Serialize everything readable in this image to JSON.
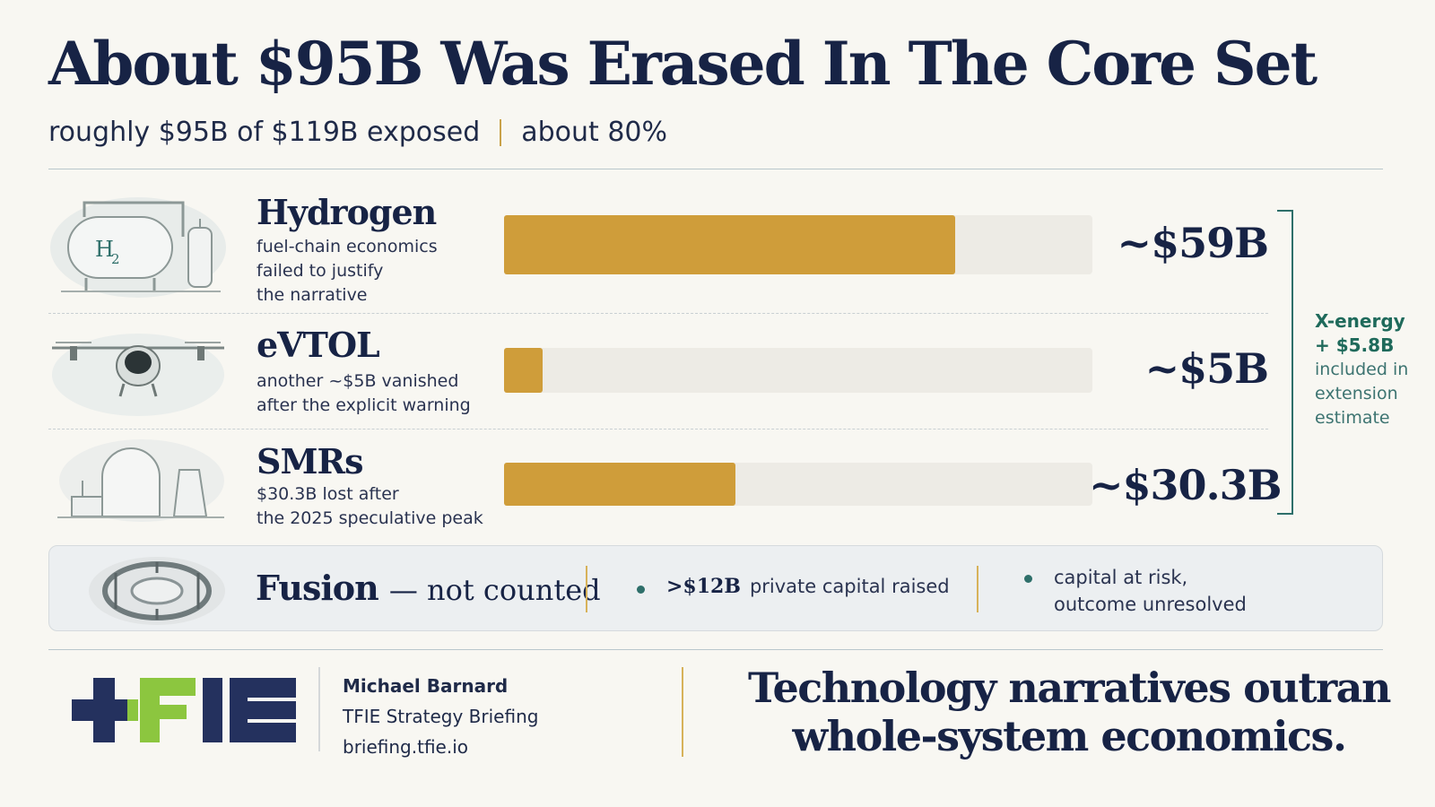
{
  "header": {
    "title": "About $95B Was Erased In The Core Set",
    "subtitle_left": "roughly $95B of $119B exposed",
    "subtitle_right": "about 80%"
  },
  "chart_data": {
    "type": "bar",
    "orientation": "horizontal",
    "categories": [
      "Hydrogen",
      "eVTOL",
      "SMRs"
    ],
    "values": [
      59,
      5,
      30.3
    ],
    "value_labels": [
      "~$59B",
      "~$5B",
      "~$30.3B"
    ],
    "unit": "$B",
    "xlim": [
      0,
      77
    ],
    "descriptions": [
      "fuel-chain economics failed to justify the narrative",
      "another ~$5B vanished after the explicit warning",
      "$30.3B lost after the 2025 speculative peak"
    ],
    "bar_color": "#cf9d3a",
    "track_color": "#edebe5"
  },
  "rows": [
    {
      "name": "Hydrogen",
      "desc": [
        "fuel-chain economics",
        "failed to justify",
        "the narrative"
      ],
      "value_label": "~$59B",
      "icon": "hydrogen-tank-icon"
    },
    {
      "name": "eVTOL",
      "desc": [
        "another ~$5B vanished",
        "after the explicit warning"
      ],
      "value_label": "~$5B",
      "icon": "evtol-aircraft-icon"
    },
    {
      "name": "SMRs",
      "desc": [
        "$30.3B lost after",
        "the 2025 speculative peak"
      ],
      "value_label": "~$30.3B",
      "icon": "nuclear-plant-icon"
    }
  ],
  "side_note": {
    "line1": "X-energy",
    "line2": "+ $5.8B",
    "line3": "included in",
    "line4": "extension",
    "line5": "estimate"
  },
  "fusion": {
    "name": "Fusion",
    "not_counted": "— not counted",
    "stat_value": ">$12B",
    "stat_text": "private capital raised",
    "risk_line1": "capital at risk,",
    "risk_line2": "outcome unresolved",
    "icon": "fusion-reactor-icon"
  },
  "footer": {
    "author": "Michael Barnard",
    "org": "TFIE Strategy Briefing",
    "site": "briefing.tfie.io",
    "tagline_line1": "Technology narratives outran",
    "tagline_line2": "whole-system economics.",
    "logo_text": "TFIE"
  },
  "colors": {
    "navy": "#172345",
    "gold": "#cf9d3a",
    "teal": "#2e6f6a",
    "logo_green": "#8cc63f",
    "logo_navy": "#24315e"
  }
}
